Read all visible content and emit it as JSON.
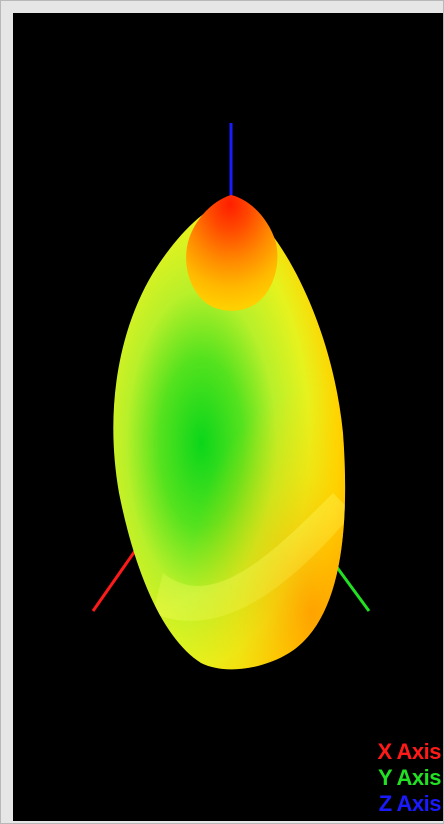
{
  "legend": {
    "x_axis": {
      "label": "X Axis",
      "color": "#ff1a1a"
    },
    "y_axis": {
      "label": "Y Axis",
      "color": "#22e022"
    },
    "z_axis": {
      "label": "Z Axis",
      "color": "#1a1aff"
    }
  },
  "surface_colors": {
    "tip": "#ff2a00",
    "upper": "#ff8a00",
    "mid": "#d8ff2a",
    "center": "#0bd61a",
    "edge": "#ffd400"
  }
}
